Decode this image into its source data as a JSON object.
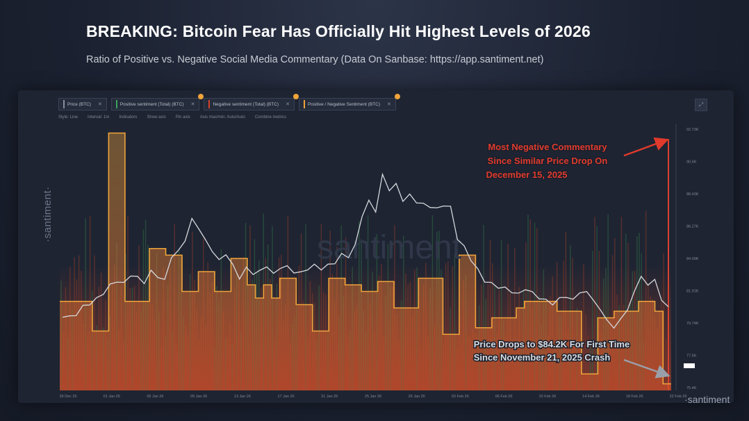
{
  "header": {
    "title": "BREAKING: Bitcoin Fear Has Officially Hit Highest Levels of 2026",
    "subtitle": "Ratio of Positive vs. Negative Social Media Commentary (Data On Sanbase: https://app.santiment.net)"
  },
  "metrics": [
    {
      "label": "Price (BTC)",
      "color": "#8a8f9a"
    },
    {
      "label": "Positive sentiment (Total) (BTC)",
      "color": "#3aa35b"
    },
    {
      "label": "Negative sentiment (Total) (BTC)",
      "color": "#d9412f"
    },
    {
      "label": "Positive / Negative Sentiment (BTC)",
      "color": "#f0a43a"
    }
  ],
  "toolbar": [
    "Style: Line",
    "Interval: 1m",
    "Indicators",
    "Show axis",
    "Pin axis",
    "Axis max/min: Auto/Auto",
    "Combine metrics"
  ],
  "watermarks": {
    "side": "·santiment·",
    "corner": "·santiment",
    "center": "santiment"
  },
  "annotations": {
    "top": [
      "Most Negative Commentary",
      "Since Similar Price Drop On",
      "December 15, 2025"
    ],
    "bottom": [
      "Price Drops to $84.2K For First Time",
      "Since November 21, 2025 Crash"
    ]
  },
  "colors": {
    "ratio": "#f0a43a",
    "price": "#d6d9de",
    "positive": "#3aa35b",
    "negative": "#d9412f",
    "annotation": "#e03a2c"
  },
  "chart_data": {
    "type": "line",
    "title": "BREAKING: Bitcoin Fear Has Officially Hit Highest Levels of 2026",
    "x_ticks": [
      "28 Dec 25",
      "01 Jan 26",
      "05 Jan 26",
      "09 Jan 26",
      "13 Jan 26",
      "17 Jan 26",
      "21 Jan 26",
      "25 Jan 26",
      "29 Jan 26",
      "02 Feb 26",
      "06 Feb 26",
      "10 Feb 26",
      "14 Feb 26",
      "18 Feb 26",
      "22 Feb 26"
    ],
    "y_ticks": [
      "92.73K",
      "90.6K",
      "88.43K",
      "86.27K",
      "84.09K",
      "81.91K",
      "79.74K",
      "77.5K",
      "75.4K"
    ],
    "price_axis": {
      "min": 75.4,
      "max": 92.73,
      "unit": "K USD"
    },
    "price_series": [
      80.3,
      80.2,
      80.4,
      80.9,
      81.1,
      81.4,
      81.8,
      82.3,
      82.6,
      82.4,
      83.0,
      82.8,
      82.5,
      83.2,
      82.9,
      82.6,
      84.2,
      84.5,
      85.3,
      86.6,
      86.1,
      85.2,
      84.6,
      83.9,
      84.4,
      83.6,
      82.8,
      83.4,
      83.1,
      83.2,
      83.6,
      83.0,
      83.5,
      83.5,
      83.2,
      83.1,
      83.4,
      83.6,
      83.4,
      83.6,
      83.8,
      84.3,
      84.2,
      84.9,
      86.9,
      87.8,
      87.2,
      89.5,
      88.6,
      88.9,
      87.9,
      88.2,
      87.8,
      87.6,
      87.5,
      87.3,
      87.6,
      87.4,
      85.4,
      84.8,
      84.0,
      83.3,
      82.6,
      82.4,
      82.2,
      82.1,
      81.9,
      81.7,
      82.1,
      81.8,
      81.5,
      81.3,
      81.1,
      81.4,
      81.6,
      81.3,
      81.9,
      81.8,
      81.4,
      80.6,
      80.1,
      79.4,
      80.2,
      80.6,
      82.0,
      82.8,
      82.4,
      82.6,
      81.4,
      80.8
    ],
    "ratio_axis": {
      "min": 0,
      "max": 4.0,
      "unit": "ratio"
    },
    "ratio_series": [
      1.35,
      1.35,
      1.35,
      1.35,
      0.9,
      0.9,
      3.9,
      3.9,
      1.35,
      1.35,
      1.35,
      2.15,
      2.15,
      2.05,
      2.05,
      1.5,
      1.5,
      1.8,
      1.8,
      1.5,
      1.5,
      2.0,
      2.0,
      1.6,
      1.4,
      1.6,
      1.4,
      1.7,
      1.7,
      1.3,
      1.3,
      0.9,
      0.9,
      1.7,
      1.7,
      1.6,
      1.6,
      1.5,
      1.5,
      1.65,
      1.65,
      1.25,
      1.25,
      1.25,
      1.7,
      1.7,
      1.7,
      0.85,
      0.85,
      2.05,
      2.05,
      0.95,
      0.95,
      1.1,
      1.1,
      1.1,
      1.25,
      1.35,
      1.35,
      1.35,
      1.35,
      1.2,
      1.2,
      1.2,
      0.25,
      0.25,
      1.1,
      1.1,
      1.2,
      1.2,
      1.2,
      1.35,
      1.35,
      1.2,
      0.1
    ]
  }
}
